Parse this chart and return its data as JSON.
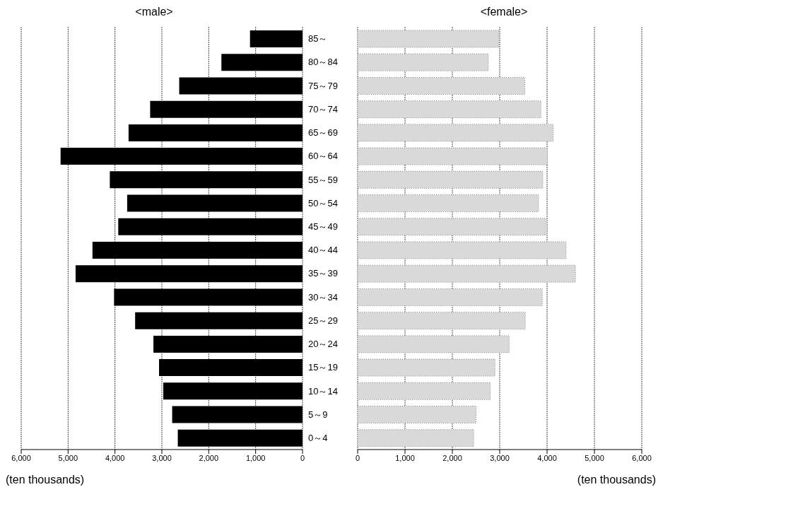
{
  "chart_data": [
    {
      "type": "bar",
      "orientation": "horizontal",
      "title": "<male>",
      "xlabel": "(ten thousands)",
      "categories": [
        "85～",
        "80～84",
        "75～79",
        "70～74",
        "65～69",
        "60～64",
        "55～59",
        "50～54",
        "45～49",
        "40～44",
        "35～39",
        "30～34",
        "25～29",
        "20～24",
        "15～19",
        "10～14",
        "5～9",
        "0～4"
      ],
      "values": [
        1120,
        1730,
        2630,
        3250,
        3710,
        5160,
        4110,
        3740,
        3930,
        4480,
        4840,
        4020,
        3570,
        3180,
        3060,
        2970,
        2780,
        2660
      ],
      "color": "#000000",
      "xlim": [
        6000,
        0
      ],
      "xticks": [
        {
          "value": 6000,
          "label": "6,000"
        },
        {
          "value": 5000,
          "label": "5,000"
        },
        {
          "value": 4000,
          "label": "4,000"
        },
        {
          "value": 3000,
          "label": "3,000"
        },
        {
          "value": 2000,
          "label": "2,000"
        },
        {
          "value": 1000,
          "label": "1,000"
        },
        0
      ],
      "grid": "x",
      "legend": false
    },
    {
      "type": "bar",
      "orientation": "horizontal",
      "title": "<female>",
      "xlabel": "(ten thousands)",
      "categories": [
        null,
        null,
        null,
        null,
        null,
        null,
        null,
        null,
        null,
        null,
        null,
        null,
        null,
        null,
        null,
        null,
        null,
        null
      ],
      "values": [
        2980,
        2760,
        3530,
        3870,
        4130,
        4010,
        3910,
        3820,
        3970,
        4400,
        4600,
        3900,
        3540,
        3200,
        2900,
        2800,
        2500,
        2450
      ],
      "color": "#d9d9d9",
      "xlim": [
        0,
        6000
      ],
      "xticks": [
        0,
        {
          "value": 1000,
          "label": "1,000"
        },
        {
          "value": 2000,
          "label": "2,000"
        },
        {
          "value": 3000,
          "label": "3,000"
        },
        {
          "value": 4000,
          "label": "4,000"
        },
        {
          "value": 5000,
          "label": "5,000"
        },
        {
          "value": 6000,
          "label": "6,000"
        }
      ],
      "grid": "x",
      "legend": false,
      "tick_labels": "x"
    }
  ]
}
